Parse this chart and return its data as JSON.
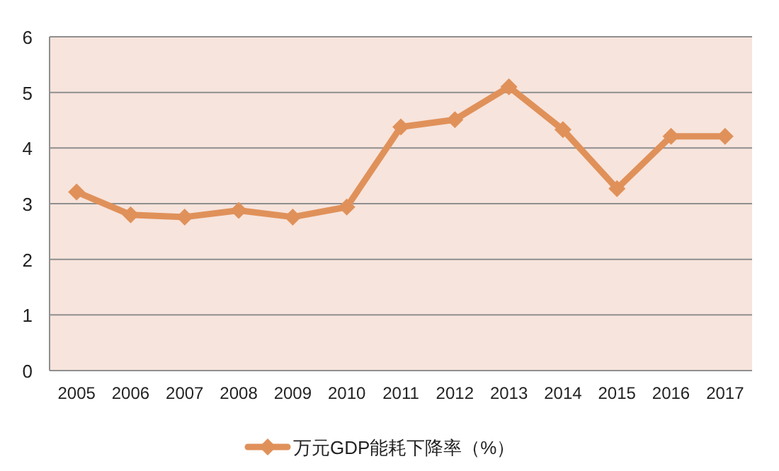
{
  "chart_data": {
    "type": "line",
    "categories": [
      "2005",
      "2006",
      "2007",
      "2008",
      "2009",
      "2010",
      "2011",
      "2012",
      "2013",
      "2014",
      "2015",
      "2016",
      "2017"
    ],
    "series": [
      {
        "name": "万元GDP能耗下降率（%）",
        "color": "#e0915a",
        "values": [
          3.21,
          2.8,
          2.76,
          2.88,
          2.76,
          2.94,
          4.38,
          4.51,
          5.1,
          4.33,
          3.27,
          4.21,
          4.21
        ]
      }
    ],
    "ylim": [
      0,
      6
    ],
    "yticks": [
      0,
      1,
      2,
      3,
      4,
      5,
      6
    ],
    "grid": "y",
    "legend": "bottom",
    "marker": "diamond",
    "line_style": "solid"
  }
}
